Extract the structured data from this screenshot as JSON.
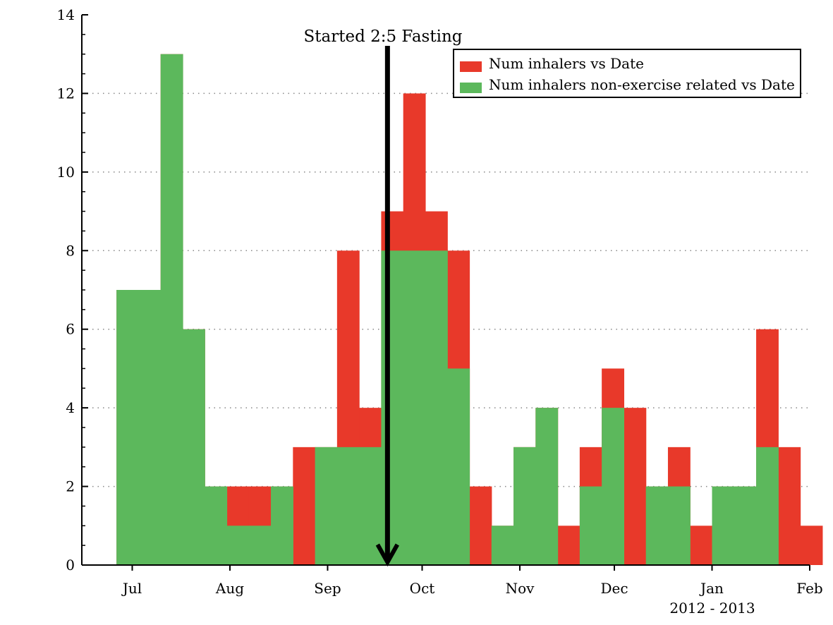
{
  "chart_data": {
    "type": "bar",
    "x_axis": {
      "ticks": [
        "Jul",
        "Aug",
        "Sep",
        "Oct",
        "Nov",
        "Dec",
        "Jan",
        "Feb"
      ],
      "tick_dates": [
        "2012-07-01",
        "2012-08-01",
        "2012-09-01",
        "2012-10-01",
        "2012-11-01",
        "2012-12-01",
        "2013-01-01",
        "2013-02-01"
      ],
      "sublabel": "2012 - 2013",
      "range": [
        "2012-06-15",
        "2013-02-01"
      ]
    },
    "y_axis": {
      "range": [
        0,
        14
      ],
      "ticks": [
        0,
        2,
        4,
        6,
        8,
        10,
        12,
        14
      ],
      "grid": "dotted horizontal lines at even values"
    },
    "bin_edges": [
      "2012-06-26",
      "2012-07-03",
      "2012-07-10",
      "2012-07-17",
      "2012-07-24",
      "2012-07-31",
      "2012-08-07",
      "2012-08-14",
      "2012-08-21",
      "2012-08-28",
      "2012-09-04",
      "2012-09-11",
      "2012-09-18",
      "2012-09-25",
      "2012-10-02",
      "2012-10-09",
      "2012-10-16",
      "2012-10-23",
      "2012-10-30",
      "2012-11-06",
      "2012-11-13",
      "2012-11-20",
      "2012-11-27",
      "2012-12-04",
      "2012-12-11",
      "2012-12-18",
      "2012-12-25",
      "2013-01-01",
      "2013-01-08",
      "2013-01-15",
      "2013-01-22",
      "2013-01-29"
    ],
    "series": [
      {
        "name": "Num inhalers vs Date",
        "color": "#e8392a",
        "values": [
          7,
          7,
          13,
          6,
          2,
          2,
          2,
          2,
          3,
          3,
          8,
          4,
          9,
          12,
          9,
          8,
          2,
          1,
          3,
          4,
          1,
          3,
          5,
          4,
          2,
          3,
          1,
          2,
          2,
          6,
          3,
          1
        ]
      },
      {
        "name": "Num inhalers non-exercise related vs Date",
        "color": "#5cb85c",
        "values": [
          7,
          7,
          13,
          6,
          2,
          1,
          1,
          2,
          0,
          3,
          3,
          3,
          8,
          8,
          8,
          5,
          0,
          1,
          3,
          4,
          0,
          2,
          4,
          0,
          2,
          2,
          0,
          2,
          2,
          3,
          0,
          0
        ]
      }
    ],
    "legend": {
      "placement": "top-right"
    },
    "annotation": {
      "text": "Started 2:5 Fasting",
      "date": "2012-09-20",
      "arrow": "down"
    }
  }
}
